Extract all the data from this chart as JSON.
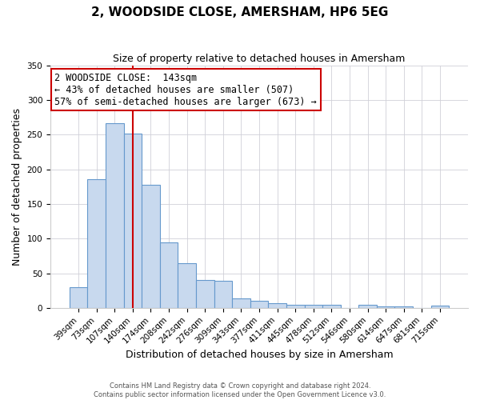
{
  "title": "2, WOODSIDE CLOSE, AMERSHAM, HP6 5EG",
  "subtitle": "Size of property relative to detached houses in Amersham",
  "xlabel": "Distribution of detached houses by size in Amersham",
  "ylabel": "Number of detached properties",
  "bar_labels": [
    "39sqm",
    "73sqm",
    "107sqm",
    "140sqm",
    "174sqm",
    "208sqm",
    "242sqm",
    "276sqm",
    "309sqm",
    "343sqm",
    "377sqm",
    "411sqm",
    "445sqm",
    "478sqm",
    "512sqm",
    "546sqm",
    "580sqm",
    "614sqm",
    "647sqm",
    "681sqm",
    "715sqm"
  ],
  "bar_values": [
    30,
    186,
    267,
    252,
    178,
    95,
    65,
    40,
    39,
    14,
    10,
    7,
    4,
    5,
    5,
    0,
    5,
    2,
    2,
    0,
    3
  ],
  "bar_color": "#c8d9ee",
  "bar_edge_color": "#6699cc",
  "vline_x": 3,
  "vline_color": "#cc0000",
  "annotation_title": "2 WOODSIDE CLOSE:  143sqm",
  "annotation_line1": "← 43% of detached houses are smaller (507)",
  "annotation_line2": "57% of semi-detached houses are larger (673) →",
  "annotation_box_facecolor": "#ffffff",
  "annotation_box_edgecolor": "#cc0000",
  "ylim": [
    0,
    350
  ],
  "yticks": [
    0,
    50,
    100,
    150,
    200,
    250,
    300,
    350
  ],
  "title_fontsize": 11,
  "subtitle_fontsize": 9,
  "ylabel_fontsize": 9,
  "xlabel_fontsize": 9,
  "tick_fontsize": 7.5,
  "footer1": "Contains HM Land Registry data © Crown copyright and database right 2024.",
  "footer2": "Contains public sector information licensed under the Open Government Licence v3.0."
}
